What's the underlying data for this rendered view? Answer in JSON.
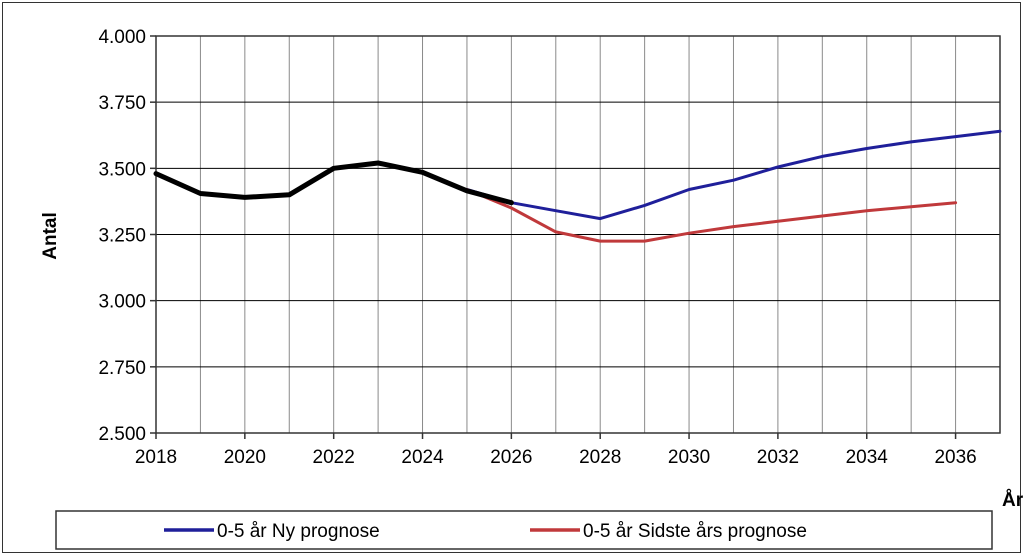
{
  "chart_data": {
    "type": "line",
    "title": "",
    "xlabel": "År",
    "ylabel": "Antal",
    "xlim": [
      2018,
      2037
    ],
    "ylim": [
      2500,
      4000
    ],
    "x_ticks": [
      2018,
      2020,
      2022,
      2024,
      2026,
      2028,
      2030,
      2032,
      2034,
      2036
    ],
    "x_tick_labels": [
      "2018",
      "2020",
      "2022",
      "2024",
      "2026",
      "2028",
      "2030",
      "2032",
      "2034",
      "2036"
    ],
    "y_ticks": [
      2500,
      2750,
      3000,
      3250,
      3500,
      3750,
      4000
    ],
    "y_tick_labels": [
      "2.500",
      "2.750",
      "3.000",
      "3.250",
      "3.500",
      "3.750",
      "4.000"
    ],
    "grid": true,
    "legend_position": "bottom",
    "series": [
      {
        "name": "0-5 år Ny prognose",
        "color": "#1f1f9a",
        "x": [
          2025,
          2026,
          2027,
          2028,
          2029,
          2030,
          2031,
          2032,
          2033,
          2034,
          2035,
          2036,
          2037
        ],
        "values": [
          3420,
          3370,
          3340,
          3310,
          3360,
          3420,
          3455,
          3505,
          3545,
          3575,
          3600,
          3620,
          3640
        ]
      },
      {
        "name": "0-5 år Sidste års prognose",
        "color": "#c0393b",
        "x": [
          2025,
          2026,
          2027,
          2028,
          2029,
          2030,
          2031,
          2032,
          2033,
          2034,
          2035,
          2036
        ],
        "values": [
          3420,
          3350,
          3260,
          3225,
          3225,
          3255,
          3280,
          3300,
          3320,
          3340,
          3355,
          3370
        ]
      },
      {
        "color": "#000000",
        "x": [
          2018,
          2019,
          2020,
          2021,
          2022,
          2023,
          2024,
          2025,
          2026
        ],
        "values": [
          3480,
          3405,
          3390,
          3400,
          3500,
          3520,
          3485,
          3415,
          3370
        ]
      }
    ]
  }
}
